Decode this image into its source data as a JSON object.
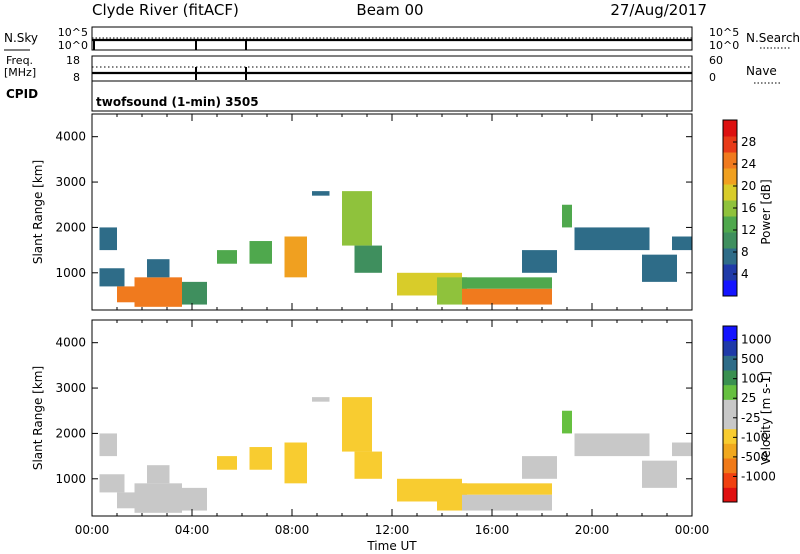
{
  "header": {
    "station": "Clyde River (fitACF)",
    "beam": "Beam 00",
    "date": "27/Aug/2017"
  },
  "strips": {
    "nsky_label": "N.Sky",
    "nsearch_label": "N.Search",
    "nsky_ticks": [
      "10^5",
      "10^0"
    ],
    "nsky_right_ticks": [
      "10^5",
      "10^0"
    ],
    "freq_label": "Freq.",
    "freq_unit": "[MHz]",
    "freq_ticks": [
      "18",
      "8"
    ],
    "nave_label": "Nave",
    "nave_ticks": [
      "60",
      "0"
    ],
    "cpid_label": "CPID",
    "cpid_value": "twofsound (1-min) 3505"
  },
  "chart_data": [
    {
      "type": "heatmap",
      "name": "power",
      "xlabel": "",
      "ylabel": "Slant Range [km]",
      "xlim": [
        0,
        24
      ],
      "ylim": [
        180,
        4500
      ],
      "yticks": [
        "4000",
        "3000",
        "2000",
        "1000"
      ],
      "colorbar": {
        "label": "Power [dB]",
        "ticks": [
          "28",
          "24",
          "20",
          "16",
          "12",
          "8",
          "4"
        ],
        "range": [
          0,
          32
        ],
        "colors": [
          "#1414ff",
          "#1f3aa8",
          "#2e6c88",
          "#3f8f5e",
          "#4fa84d",
          "#8fc23c",
          "#d8cc2a",
          "#f0a020",
          "#f07a1e",
          "#e83a18",
          "#dd1010"
        ]
      },
      "cells": [
        {
          "t0": 0.3,
          "t1": 1.0,
          "r0": 1500,
          "r1": 2000,
          "v": 6
        },
        {
          "t0": 0.3,
          "t1": 1.3,
          "r0": 700,
          "r1": 1100,
          "v": 7
        },
        {
          "t0": 1.0,
          "t1": 1.7,
          "r0": 350,
          "r1": 700,
          "v": 24
        },
        {
          "t0": 1.7,
          "t1": 3.6,
          "r0": 250,
          "r1": 900,
          "v": 26
        },
        {
          "t0": 2.2,
          "t1": 3.1,
          "r0": 900,
          "r1": 1300,
          "v": 8
        },
        {
          "t0": 3.6,
          "t1": 4.6,
          "r0": 300,
          "r1": 800,
          "v": 10
        },
        {
          "t0": 5.0,
          "t1": 5.8,
          "r0": 1200,
          "r1": 1500,
          "v": 14
        },
        {
          "t0": 6.3,
          "t1": 7.2,
          "r0": 1200,
          "r1": 1700,
          "v": 12
        },
        {
          "t0": 7.7,
          "t1": 8.6,
          "r0": 900,
          "r1": 1800,
          "v": 22
        },
        {
          "t0": 8.8,
          "t1": 9.5,
          "r0": 2700,
          "r1": 2800,
          "v": 7
        },
        {
          "t0": 10.0,
          "t1": 11.2,
          "r0": 1600,
          "r1": 2800,
          "v": 16
        },
        {
          "t0": 10.5,
          "t1": 11.6,
          "r0": 1000,
          "r1": 1600,
          "v": 9
        },
        {
          "t0": 12.2,
          "t1": 14.8,
          "r0": 500,
          "r1": 1000,
          "v": 19
        },
        {
          "t0": 13.8,
          "t1": 15.0,
          "r0": 300,
          "r1": 900,
          "v": 16
        },
        {
          "t0": 14.8,
          "t1": 18.4,
          "r0": 300,
          "r1": 650,
          "v": 26
        },
        {
          "t0": 14.8,
          "t1": 18.4,
          "r0": 650,
          "r1": 900,
          "v": 13
        },
        {
          "t0": 17.2,
          "t1": 18.6,
          "r0": 1000,
          "r1": 1500,
          "v": 8
        },
        {
          "t0": 18.8,
          "t1": 19.2,
          "r0": 2000,
          "r1": 2500,
          "v": 14
        },
        {
          "t0": 19.3,
          "t1": 22.3,
          "r0": 1500,
          "r1": 2000,
          "v": 7
        },
        {
          "t0": 22.0,
          "t1": 23.4,
          "r0": 800,
          "r1": 1400,
          "v": 8
        },
        {
          "t0": 23.2,
          "t1": 24.0,
          "r0": 1500,
          "r1": 1800,
          "v": 7
        }
      ]
    },
    {
      "type": "heatmap",
      "name": "velocity",
      "xlabel": "Time UT",
      "ylabel": "Slant Range [km]",
      "xlim": [
        0,
        24
      ],
      "ylim": [
        180,
        4500
      ],
      "xticks": [
        "00:00",
        "04:00",
        "08:00",
        "12:00",
        "16:00",
        "20:00",
        "00:00"
      ],
      "yticks": [
        "4000",
        "3000",
        "2000",
        "1000"
      ],
      "colorbar": {
        "label": "Velocity [m s-1]",
        "ticks": [
          "1000",
          "500",
          "100",
          "25",
          "-25",
          "-100",
          "-500",
          "-1000"
        ],
        "range": [
          -1250,
          1250
        ],
        "colors": [
          "#e01010",
          "#f04010",
          "#f07a18",
          "#f0a81e",
          "#f8cc30",
          "#c8c8c8",
          "#c8c8c8",
          "#66c040",
          "#3a9050",
          "#2e6c88",
          "#1f3aa8",
          "#1414ff"
        ]
      },
      "cells": [
        {
          "t0": 0.3,
          "t1": 1.0,
          "r0": 1500,
          "r1": 2000,
          "v": 0
        },
        {
          "t0": 0.3,
          "t1": 1.3,
          "r0": 700,
          "r1": 1100,
          "v": -150
        },
        {
          "t0": 1.0,
          "t1": 1.7,
          "r0": 350,
          "r1": 700,
          "v": 60
        },
        {
          "t0": 1.7,
          "t1": 3.6,
          "r0": 250,
          "r1": 900,
          "v": 0
        },
        {
          "t0": 2.2,
          "t1": 3.1,
          "r0": 900,
          "r1": 1300,
          "v": -150
        },
        {
          "t0": 3.6,
          "t1": 4.6,
          "r0": 300,
          "r1": 800,
          "v": 60
        },
        {
          "t0": 5.0,
          "t1": 5.8,
          "r0": 1200,
          "r1": 1500,
          "v": -300
        },
        {
          "t0": 6.3,
          "t1": 7.2,
          "r0": 1200,
          "r1": 1700,
          "v": -300
        },
        {
          "t0": 7.7,
          "t1": 8.6,
          "r0": 900,
          "r1": 1800,
          "v": -300
        },
        {
          "t0": 8.8,
          "t1": 9.5,
          "r0": 2700,
          "r1": 2800,
          "v": 0
        },
        {
          "t0": 10.0,
          "t1": 11.2,
          "r0": 1600,
          "r1": 2800,
          "v": -250
        },
        {
          "t0": 10.5,
          "t1": 11.6,
          "r0": 1000,
          "r1": 1600,
          "v": -300
        },
        {
          "t0": 12.2,
          "t1": 14.8,
          "r0": 500,
          "r1": 1000,
          "v": -400
        },
        {
          "t0": 13.8,
          "t1": 15.0,
          "r0": 300,
          "r1": 900,
          "v": -300
        },
        {
          "t0": 14.8,
          "t1": 18.4,
          "r0": 300,
          "r1": 650,
          "v": 0
        },
        {
          "t0": 14.8,
          "t1": 18.4,
          "r0": 650,
          "r1": 900,
          "v": -300
        },
        {
          "t0": 17.2,
          "t1": 18.6,
          "r0": 1000,
          "r1": 1500,
          "v": -150
        },
        {
          "t0": 18.8,
          "t1": 19.2,
          "r0": 2000,
          "r1": 2500,
          "v": 300
        },
        {
          "t0": 19.3,
          "t1": 22.3,
          "r0": 1500,
          "r1": 2000,
          "v": 0
        },
        {
          "t0": 22.0,
          "t1": 23.4,
          "r0": 800,
          "r1": 1400,
          "v": -200
        },
        {
          "t0": 23.2,
          "t1": 24.0,
          "r0": 1500,
          "r1": 1800,
          "v": -150
        }
      ]
    }
  ]
}
